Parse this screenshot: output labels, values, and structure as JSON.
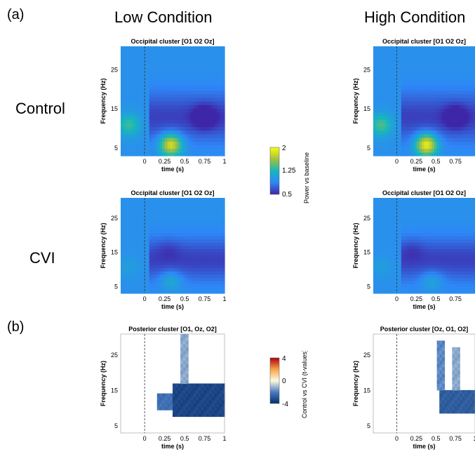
{
  "panel_labels": {
    "a": "(a)",
    "b": "(b)"
  },
  "columns": {
    "low": "Low Condition",
    "high": "High Condition"
  },
  "rows": {
    "control": "Control",
    "cvi": "CVI"
  },
  "colorbar_power": {
    "label": "Power vs baseline",
    "ticks": [
      "2",
      "1.25",
      "0.5"
    ]
  },
  "colorbar_tvalues": {
    "label": "Control vs CVI (t-values)",
    "ticks": [
      "4",
      "0",
      "-4"
    ]
  },
  "chart_data": [
    {
      "id": "low-control",
      "type": "heatmap",
      "title": "Occipital cluster [O1 O2 Oz]",
      "xlabel": "time (s)",
      "ylabel": "Frequency (Hz)",
      "xticks": [
        "0",
        "0.25",
        "0.5",
        "0.75",
        "1"
      ],
      "yticks": [
        "25",
        "15",
        "5"
      ],
      "xlim": [
        -0.3,
        1.0
      ],
      "ylim": [
        3,
        31
      ],
      "colormap": "parula",
      "clim": [
        0.5,
        2
      ],
      "blobs": [
        {
          "t": 0.33,
          "f": 6,
          "value": 1.9
        },
        {
          "t": -0.2,
          "f": 11,
          "value": 1.35
        },
        {
          "t": 0.75,
          "f": 13,
          "value": 0.55
        }
      ]
    },
    {
      "id": "high-control",
      "type": "heatmap",
      "title": "Occipital cluster [O1 O2 Oz]",
      "xlabel": "time (s)",
      "ylabel": "Frequency (Hz)",
      "xticks": [
        "0",
        "0.25",
        "0.5",
        "0.75"
      ],
      "yticks": [
        "25",
        "15",
        "5"
      ],
      "xlim": [
        -0.3,
        1.0
      ],
      "ylim": [
        3,
        31
      ],
      "colormap": "parula",
      "clim": [
        0.5,
        2
      ],
      "blobs": [
        {
          "t": 0.38,
          "f": 6,
          "value": 2.0
        },
        {
          "t": -0.2,
          "f": 11,
          "value": 1.4
        },
        {
          "t": 0.75,
          "f": 13,
          "value": 0.6
        }
      ]
    },
    {
      "id": "low-cvi",
      "type": "heatmap",
      "title": "Occipital cluster [O1 O2 Oz]",
      "xlabel": "time (s)",
      "ylabel": "Frequency (Hz)",
      "xticks": [
        "0",
        "0.25",
        "0.5",
        "0.75",
        "1"
      ],
      "yticks": [
        "25",
        "15",
        "5"
      ],
      "xlim": [
        -0.3,
        1.0
      ],
      "ylim": [
        3,
        31
      ],
      "colormap": "parula",
      "clim": [
        0.5,
        2
      ],
      "blobs": [
        {
          "t": 0.33,
          "f": 7,
          "value": 1.25
        },
        {
          "t": -0.2,
          "f": 11,
          "value": 1.05
        },
        {
          "t": 0.3,
          "f": 16,
          "value": 0.85
        }
      ]
    },
    {
      "id": "high-cvi",
      "type": "heatmap",
      "title": "Occipital cluster [O1 O2 Oz]",
      "xlabel": "time (s)",
      "ylabel": "Frequency (Hz)",
      "xticks": [
        "0",
        "0.25",
        "0.5",
        "0.75"
      ],
      "yticks": [
        "25",
        "15",
        "5"
      ],
      "xlim": [
        -0.3,
        1.0
      ],
      "ylim": [
        3,
        31
      ],
      "colormap": "parula",
      "clim": [
        0.5,
        2
      ],
      "blobs": [
        {
          "t": 0.45,
          "f": 7,
          "value": 1.2
        },
        {
          "t": -0.2,
          "f": 11,
          "value": 1.05
        },
        {
          "t": 0.2,
          "f": 16,
          "value": 0.85
        }
      ]
    },
    {
      "id": "low-stats",
      "type": "heatmap",
      "title": "Posterior cluster [O1, Oz, O2]",
      "xlabel": "time (s)",
      "ylabel": "Frequency (Hz)",
      "xticks": [
        "0",
        "0.25",
        "0.5",
        "0.75",
        "1"
      ],
      "yticks": [
        "25",
        "15",
        "5"
      ],
      "xlim": [
        -0.3,
        1.0
      ],
      "ylim": [
        3,
        31
      ],
      "colormap": "diverging",
      "clim": [
        -4,
        4
      ],
      "clusters": [
        {
          "t": [
            0.35,
            1.0
          ],
          "f": [
            8,
            17
          ],
          "value": -3.6
        },
        {
          "t": [
            0.45,
            0.55
          ],
          "f": [
            17,
            31
          ],
          "value": -1.5
        },
        {
          "t": [
            0.15,
            0.35
          ],
          "f": [
            10,
            14
          ],
          "value": -2.5
        }
      ]
    },
    {
      "id": "high-stats",
      "type": "heatmap",
      "title": "Posterior cluster [Oz, O1, O2]",
      "xlabel": "time (s)",
      "ylabel": "Frequency (Hz)",
      "xticks": [
        "0",
        "0.25",
        "0.5",
        "0.75",
        "1"
      ],
      "yticks": [
        "25",
        "15",
        "5"
      ],
      "xlim": [
        -0.3,
        1.0
      ],
      "ylim": [
        3,
        31
      ],
      "colormap": "diverging",
      "clim": [
        -4,
        4
      ],
      "clusters": [
        {
          "t": [
            0.55,
            1.0
          ],
          "f": [
            9,
            15
          ],
          "value": -3.0
        },
        {
          "t": [
            0.5,
            0.6
          ],
          "f": [
            15,
            29
          ],
          "value": -2.0
        },
        {
          "t": [
            0.7,
            0.8
          ],
          "f": [
            15,
            27
          ],
          "value": -1.5
        }
      ]
    }
  ]
}
